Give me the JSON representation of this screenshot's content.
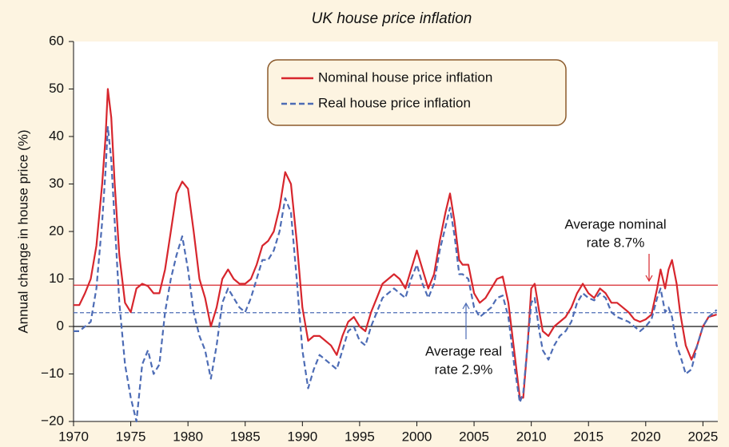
{
  "chart_data": {
    "type": "line",
    "title": "UK house price inflation",
    "y_label": "Annual change in house price (%)",
    "x": [
      1970,
      1970.5,
      1971,
      1971.5,
      1972,
      1972.5,
      1972.8,
      1973,
      1973.3,
      1973.6,
      1974,
      1974.5,
      1975,
      1975.5,
      1976,
      1976.5,
      1977,
      1977.5,
      1978,
      1978.5,
      1979,
      1979.5,
      1980,
      1980.5,
      1981,
      1981.5,
      1982,
      1982.5,
      1983,
      1983.5,
      1984,
      1984.5,
      1985,
      1985.5,
      1986,
      1986.5,
      1987,
      1987.5,
      1988,
      1988.5,
      1989,
      1989.5,
      1990,
      1990.5,
      1991,
      1991.5,
      1992,
      1992.5,
      1993,
      1993.5,
      1994,
      1994.5,
      1995,
      1995.5,
      1996,
      1996.5,
      1997,
      1997.5,
      1998,
      1998.5,
      1999,
      1999.5,
      2000,
      2000.5,
      2001,
      2001.5,
      2002,
      2002.5,
      2002.9,
      2003.3,
      2003.7,
      2004,
      2004.5,
      2005,
      2005.5,
      2006,
      2006.5,
      2007,
      2007.5,
      2008,
      2008.5,
      2009,
      2009.3,
      2009.7,
      2010,
      2010.3,
      2010.7,
      2011,
      2011.5,
      2012,
      2012.5,
      2013,
      2013.5,
      2014,
      2014.5,
      2015,
      2015.5,
      2016,
      2016.5,
      2017,
      2017.5,
      2018,
      2018.5,
      2019,
      2019.5,
      2020,
      2020.5,
      2021,
      2021.3,
      2021.7,
      2022,
      2022.3,
      2022.7,
      2023,
      2023.5,
      2024,
      2024.5,
      2025,
      2025.5,
      2026.2
    ],
    "series": [
      {
        "name": "Nominal house price inflation",
        "color": "#d7262d",
        "dash": false,
        "values": [
          4.5,
          4.5,
          7,
          10,
          17,
          30,
          40,
          50,
          44,
          30,
          15,
          5,
          3,
          8,
          9,
          8.5,
          7,
          7,
          12,
          20,
          28,
          30.5,
          29,
          20,
          10,
          6,
          0,
          4,
          10,
          12,
          10,
          9,
          9,
          10,
          13,
          17,
          18,
          20,
          25,
          32.5,
          30,
          18,
          4,
          -3,
          -2,
          -2,
          -3,
          -4,
          -6,
          -2,
          1,
          2,
          0,
          -1,
          3,
          6,
          9,
          10,
          11,
          10,
          8,
          12,
          16,
          12,
          8,
          11,
          18,
          24,
          28,
          22,
          14,
          13,
          13,
          7,
          5,
          6,
          8,
          10,
          10.5,
          5,
          -5,
          -15,
          -15,
          -3,
          8,
          9,
          3,
          -1,
          -2,
          0,
          1,
          2,
          4,
          7,
          9,
          7,
          6,
          8,
          7,
          5,
          5,
          4,
          3,
          1.5,
          1,
          1.5,
          2.5,
          8,
          12,
          8,
          12,
          14,
          9,
          3,
          -4,
          -7,
          -4,
          0,
          2,
          2.5
        ]
      },
      {
        "name": "Real house price inflation",
        "color": "#4d6cb5",
        "dash": true,
        "values": [
          -1,
          -1,
          0,
          1,
          8,
          22,
          33,
          42,
          35,
          22,
          5,
          -8,
          -15,
          -20,
          -8,
          -5,
          -10,
          -8,
          3,
          10,
          15,
          19,
          12,
          3,
          -2,
          -5,
          -11,
          -4,
          5,
          8,
          6,
          4,
          3,
          6,
          10,
          14,
          14,
          16,
          20,
          27,
          24,
          10,
          -5,
          -13,
          -9,
          -6,
          -7,
          -8,
          -9,
          -5,
          -1,
          0,
          -3,
          -4,
          0,
          3,
          6,
          7,
          8,
          7,
          6,
          10,
          13,
          9,
          6,
          9,
          16,
          21,
          25,
          19,
          11,
          11,
          10,
          4,
          2,
          3,
          4,
          6,
          6.5,
          2,
          -8,
          -16,
          -14,
          -3,
          5,
          6,
          -1,
          -5,
          -7,
          -4,
          -2,
          -1,
          1,
          5,
          7,
          6,
          5.5,
          7,
          6,
          3,
          2,
          1.5,
          1,
          0,
          -1,
          0,
          1.5,
          6,
          8,
          3,
          4,
          2,
          -4,
          -6,
          -10,
          -9,
          -4,
          0,
          2,
          3.5
        ]
      }
    ],
    "reference_lines": [
      {
        "value": 8.7,
        "color": "#d7262d",
        "dash": false
      },
      {
        "value": 2.9,
        "color": "#4d6cb5",
        "dash": true
      }
    ],
    "annotations": [
      {
        "lines": [
          "Average nominal",
          "rate 8.7%"
        ],
        "color": "#d7262d"
      },
      {
        "lines": [
          "Average real",
          "rate 2.9%"
        ],
        "color": "#4d6cb5"
      }
    ],
    "xlim": [
      1970,
      2026.3
    ],
    "xticks": [
      1970,
      1975,
      1980,
      1985,
      1990,
      1995,
      2000,
      2005,
      2010,
      2015,
      2020,
      2025
    ],
    "ylim": [
      -20,
      60
    ],
    "yticks": [
      {
        "value": -20,
        "label": "−20"
      },
      {
        "value": -10,
        "label": "−10"
      },
      0,
      10,
      20,
      30,
      40,
      50,
      60
    ]
  }
}
